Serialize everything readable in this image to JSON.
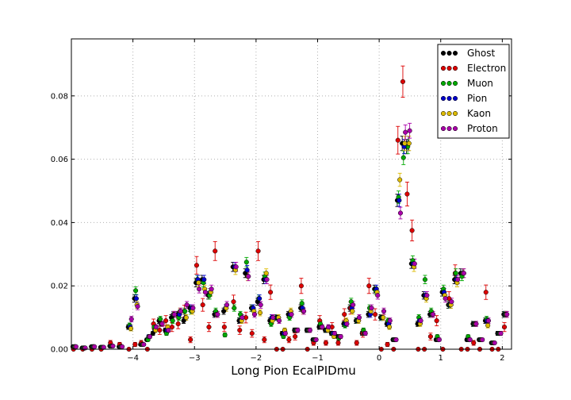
{
  "chart_data": {
    "type": "scatter",
    "title": "",
    "xlabel": "Long Pion EcalPIDmu",
    "ylabel": "",
    "xlim": [
      -5.0,
      2.15
    ],
    "ylim": [
      0.0,
      0.098
    ],
    "grid": true,
    "legend_position": "top-right",
    "x_ticks": [
      -4,
      -3,
      -2,
      -1,
      0,
      1,
      2
    ],
    "x_tick_labels": [
      "−4",
      "−3",
      "−2",
      "−1",
      "0",
      "1",
      "2"
    ],
    "y_ticks": [
      0.0,
      0.02,
      0.04,
      0.06,
      0.08
    ],
    "y_tick_labels": [
      "0.00",
      "0.02",
      "0.04",
      "0.06",
      "0.08"
    ],
    "x": [
      -4.95,
      -4.8,
      -4.65,
      -4.5,
      -4.35,
      -4.2,
      -4.05,
      -3.95,
      -3.85,
      -3.75,
      -3.65,
      -3.55,
      -3.45,
      -3.35,
      -3.25,
      -3.15,
      -3.05,
      -2.95,
      -2.85,
      -2.75,
      -2.65,
      -2.5,
      -2.35,
      -2.25,
      -2.15,
      -2.05,
      -1.95,
      -1.85,
      -1.75,
      -1.65,
      -1.55,
      -1.45,
      -1.35,
      -1.25,
      -1.15,
      -1.05,
      -0.95,
      -0.85,
      -0.75,
      -0.65,
      -0.55,
      -0.45,
      -0.35,
      -0.25,
      -0.15,
      -0.05,
      0.05,
      0.15,
      0.25,
      0.32,
      0.4,
      0.47,
      0.55,
      0.65,
      0.75,
      0.85,
      0.95,
      1.05,
      1.15,
      1.25,
      1.35,
      1.45,
      1.55,
      1.65,
      1.75,
      1.85,
      1.95,
      2.05
    ],
    "series": [
      {
        "name": "Ghost",
        "color": "#000000",
        "values": [
          0.0008,
          0.0004,
          0.0008,
          0.0006,
          0.001,
          0.0008,
          0.007,
          0.016,
          0.0015,
          0.003,
          0.005,
          0.009,
          0.006,
          0.01,
          0.011,
          0.009,
          0.013,
          0.021,
          0.022,
          0.017,
          0.011,
          0.012,
          0.026,
          0.009,
          0.024,
          0.013,
          0.015,
          0.022,
          0.009,
          0.01,
          0.005,
          0.011,
          0.006,
          0.013,
          0.006,
          0.003,
          0.007,
          0.006,
          0.005,
          0.004,
          0.008,
          0.013,
          0.009,
          0.005,
          0.011,
          0.019,
          0.01,
          0.008,
          0.003,
          0.047,
          0.065,
          0.064,
          0.027,
          0.008,
          0.017,
          0.011,
          0.003,
          0.018,
          0.014,
          0.022,
          0.024,
          0.003,
          0.008,
          0.003,
          0.009,
          0.002,
          0.005,
          0.011
        ]
      },
      {
        "name": "Electron",
        "color": "#dd0000",
        "values": [
          0.0,
          0.0,
          0.0,
          0.0,
          0.002,
          0.0015,
          0.0,
          0.0015,
          0.002,
          0.0,
          0.008,
          0.006,
          0.009,
          0.007,
          0.008,
          0.012,
          0.003,
          0.0265,
          0.014,
          0.007,
          0.031,
          0.007,
          0.015,
          0.006,
          0.01,
          0.005,
          0.031,
          0.003,
          0.018,
          0.0,
          0.0,
          0.003,
          0.004,
          0.02,
          0.0,
          0.002,
          0.009,
          0.002,
          0.007,
          0.002,
          0.011,
          0.013,
          0.002,
          0.005,
          0.02,
          0.011,
          0.0,
          0.0015,
          0.0,
          0.066,
          0.0845,
          0.049,
          0.0375,
          0.0,
          0.0,
          0.004,
          0.009,
          0.0,
          0.016,
          0.024,
          0.0,
          0.0,
          0.002,
          0.0,
          0.018,
          0.0,
          0.0,
          0.007
        ]
      },
      {
        "name": "Muon",
        "color": "#00aa00",
        "values": [
          0.0008,
          0.0004,
          0.0008,
          0.0006,
          0.001,
          0.0008,
          0.0075,
          0.0185,
          0.0015,
          0.003,
          0.007,
          0.0095,
          0.005,
          0.009,
          0.01,
          0.012,
          0.012,
          0.022,
          0.021,
          0.017,
          0.012,
          0.0045,
          0.013,
          0.011,
          0.0275,
          0.013,
          0.016,
          0.023,
          0.008,
          0.01,
          0.004,
          0.01,
          0.006,
          0.0145,
          0.006,
          0.003,
          0.008,
          0.006,
          0.005,
          0.0035,
          0.0075,
          0.015,
          0.009,
          0.006,
          0.013,
          0.0185,
          0.01,
          0.009,
          0.003,
          0.048,
          0.0605,
          0.064,
          0.028,
          0.01,
          0.022,
          0.012,
          0.004,
          0.019,
          0.014,
          0.024,
          0.023,
          0.004,
          0.008,
          0.003,
          0.0095,
          0.002,
          0.005,
          0.011
        ]
      },
      {
        "name": "Pion",
        "color": "#0000cc",
        "values": [
          0.0008,
          0.0004,
          0.0008,
          0.0006,
          0.001,
          0.0008,
          0.007,
          0.016,
          0.0015,
          0.004,
          0.006,
          0.008,
          0.006,
          0.011,
          0.011,
          0.01,
          0.013,
          0.022,
          0.022,
          0.018,
          0.011,
          0.013,
          0.026,
          0.009,
          0.025,
          0.013,
          0.016,
          0.022,
          0.01,
          0.01,
          0.005,
          0.011,
          0.006,
          0.013,
          0.006,
          0.003,
          0.007,
          0.006,
          0.005,
          0.004,
          0.008,
          0.013,
          0.009,
          0.005,
          0.011,
          0.019,
          0.01,
          0.008,
          0.003,
          0.047,
          0.064,
          0.065,
          0.027,
          0.009,
          0.017,
          0.011,
          0.003,
          0.018,
          0.014,
          0.022,
          0.024,
          0.003,
          0.008,
          0.003,
          0.009,
          0.002,
          0.005,
          0.011
        ]
      },
      {
        "name": "Kaon",
        "color": "#ddbb00",
        "values": [
          0.0008,
          0.0004,
          0.0008,
          0.0006,
          0.001,
          0.0008,
          0.0065,
          0.014,
          0.0015,
          0.004,
          0.006,
          0.008,
          0.007,
          0.011,
          0.012,
          0.01,
          0.012,
          0.021,
          0.019,
          0.018,
          0.011,
          0.013,
          0.025,
          0.009,
          0.023,
          0.012,
          0.0115,
          0.024,
          0.009,
          0.01,
          0.006,
          0.012,
          0.006,
          0.012,
          0.006,
          0.003,
          0.007,
          0.006,
          0.004,
          0.004,
          0.009,
          0.012,
          0.009,
          0.005,
          0.012,
          0.018,
          0.01,
          0.007,
          0.003,
          0.0535,
          0.065,
          0.065,
          0.026,
          0.008,
          0.016,
          0.011,
          0.003,
          0.017,
          0.014,
          0.021,
          0.024,
          0.003,
          0.008,
          0.003,
          0.0075,
          0.002,
          0.005,
          0.011
        ]
      },
      {
        "name": "Proton",
        "color": "#aa00aa",
        "values": [
          0.0008,
          0.0004,
          0.0008,
          0.0006,
          0.001,
          0.0008,
          0.0095,
          0.0135,
          0.0015,
          0.004,
          0.007,
          0.008,
          0.006,
          0.011,
          0.012,
          0.014,
          0.013,
          0.019,
          0.018,
          0.019,
          0.011,
          0.014,
          0.026,
          0.01,
          0.023,
          0.011,
          0.014,
          0.022,
          0.01,
          0.009,
          0.005,
          0.011,
          0.006,
          0.012,
          0.006,
          0.003,
          0.007,
          0.007,
          0.005,
          0.004,
          0.008,
          0.014,
          0.01,
          0.005,
          0.013,
          0.017,
          0.012,
          0.009,
          0.003,
          0.043,
          0.0685,
          0.069,
          0.027,
          0.009,
          0.017,
          0.011,
          0.003,
          0.016,
          0.015,
          0.022,
          0.024,
          0.003,
          0.008,
          0.003,
          0.009,
          0.002,
          0.005,
          0.011
        ]
      }
    ]
  }
}
